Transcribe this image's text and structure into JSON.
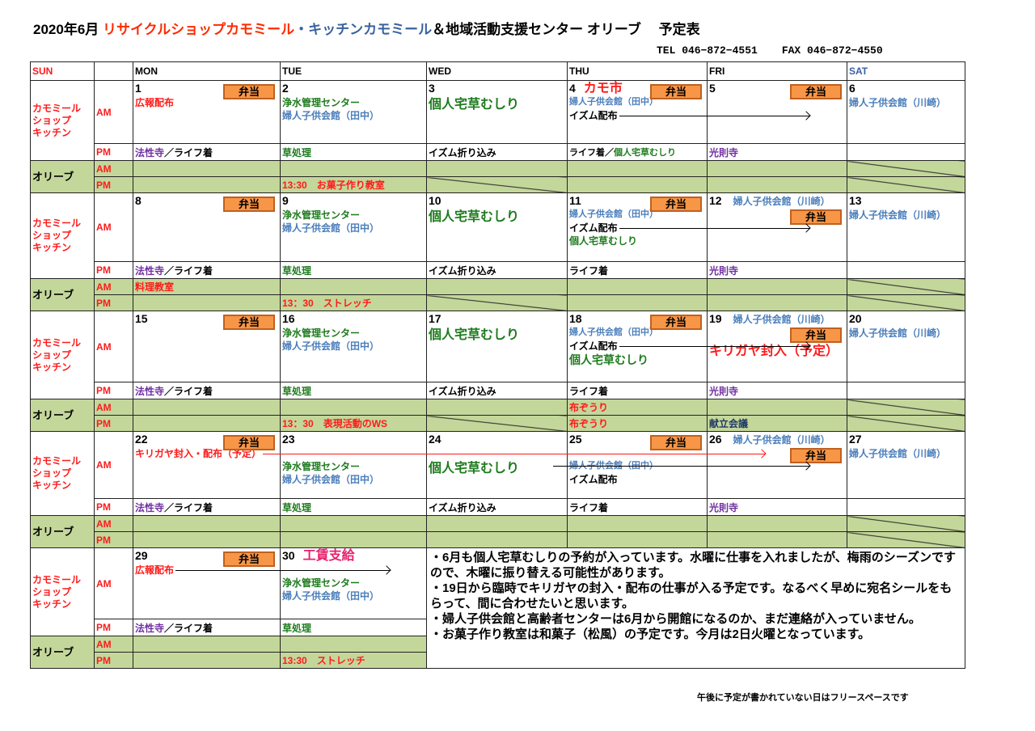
{
  "title": {
    "prefix": "2020年6月 ",
    "shop": "リサイクルショップカモミール",
    "sep": "・",
    "kitchen": "キッチンカモミール",
    "rest": "＆地域活動支援センター オリーブ　 予定表"
  },
  "contact": {
    "tel": "TEL 046−872−4551",
    "fax": "FAX 046−872−4550"
  },
  "colors": {
    "red": "#ff1a1a",
    "green": "#1e7b1e",
    "blue": "#4a7ebb",
    "purple": "#7030a0",
    "navy": "#1f3864",
    "magenta": "#e8206e",
    "olive_bg": "#c4d79b",
    "bento_bg": "#f79646"
  },
  "header": {
    "days": [
      "SUN",
      "",
      "MON",
      "TUE",
      "WED",
      "THU",
      "FRI",
      "SAT"
    ]
  },
  "labels": {
    "group_shop": [
      "カモミール",
      "ショップ",
      "キッチン"
    ],
    "group_olive": "オリーブ",
    "am": "AM",
    "pm": "PM",
    "bento": "弁当"
  },
  "weeks": [
    {
      "days": [
        {
          "date": "1",
          "bento": true,
          "am": [
            {
              "parts": [
                {
                  "text": "広報配布",
                  "color": "red"
                }
              ]
            }
          ],
          "pm": [
            {
              "text": "法性寺",
              "color": "purple"
            },
            {
              "text": "／ライフ着",
              "color": "black"
            }
          ],
          "olive_am": [],
          "olive_pm": []
        },
        {
          "date": "2",
          "am": [
            {
              "parts": [
                {
                  "text": "浄水管理センター",
                  "color": "green"
                }
              ]
            },
            {
              "parts": [
                {
                  "text": "婦人子供会館（田中）",
                  "color": "blue"
                }
              ]
            }
          ],
          "pm": [
            {
              "text": "草処理",
              "color": "green"
            }
          ],
          "olive_am": [],
          "olive_pm": [
            {
              "text": "13:30　お菓子作り教室",
              "color": "red"
            }
          ]
        },
        {
          "date": "3",
          "am": [
            {
              "size": "large",
              "parts": [
                {
                  "text": "個人宅草むしり",
                  "color": "green"
                }
              ]
            }
          ],
          "pm": [
            {
              "text": "イズム折り込み",
              "color": "black"
            }
          ],
          "olive_am": [],
          "olive_pm": [],
          "slash_pm": true
        },
        {
          "date": "4",
          "title": {
            "text": "カモ市",
            "color": "red",
            "size": "large"
          },
          "bento": true,
          "am": [
            {
              "size": "small",
              "parts": [
                {
                  "text": "婦人子供会館（田中）",
                  "color": "blue"
                }
              ]
            },
            {
              "parts": [
                {
                  "text": "イズム配布",
                  "color": "black"
                }
              ],
              "arrow_to": "FRI"
            }
          ],
          "pm": [
            {
              "text": "ライフ着／",
              "color": "black",
              "size": "small"
            },
            {
              "text": "個人宅草むしり",
              "color": "green",
              "size": "small"
            }
          ],
          "olive_am": [],
          "olive_pm": []
        },
        {
          "date": "5",
          "bento": true,
          "am": [],
          "pm": [
            {
              "text": "光則寺",
              "color": "purple"
            }
          ],
          "olive_am": [],
          "olive_pm": []
        },
        {
          "date": "6",
          "am": [
            {
              "parts": [
                {
                  "text": "婦人子供会館（川崎）",
                  "color": "blue"
                }
              ]
            }
          ],
          "pm": [],
          "olive_am": [],
          "olive_pm": [],
          "slash_am": true,
          "slash_pm": true
        }
      ]
    },
    {
      "days": [
        {
          "date": "8",
          "bento": true,
          "am": [],
          "pm": [
            {
              "text": "法性寺",
              "color": "purple"
            },
            {
              "text": "／ライフ着",
              "color": "black"
            }
          ],
          "olive_am": [
            {
              "text": "料理教室",
              "color": "red"
            }
          ],
          "olive_pm": []
        },
        {
          "date": "9",
          "am": [
            {
              "parts": [
                {
                  "text": "浄水管理センター",
                  "color": "green"
                }
              ]
            },
            {
              "parts": [
                {
                  "text": "婦人子供会館（田中）",
                  "color": "blue"
                }
              ]
            }
          ],
          "pm": [
            {
              "text": "草処理",
              "color": "green"
            }
          ],
          "olive_am": [],
          "olive_pm": [
            {
              "text": "13：30　ストレッチ",
              "color": "red"
            }
          ]
        },
        {
          "date": "10",
          "am": [
            {
              "size": "large",
              "parts": [
                {
                  "text": "個人宅草むしり",
                  "color": "green"
                }
              ]
            }
          ],
          "pm": [
            {
              "text": "イズム折り込み",
              "color": "black"
            }
          ],
          "olive_am": [],
          "olive_pm": [],
          "slash_pm": true
        },
        {
          "date": "11",
          "bento": true,
          "am": [
            {
              "size": "small",
              "parts": [
                {
                  "text": "婦人子供会館（田中）",
                  "color": "blue"
                }
              ]
            },
            {
              "parts": [
                {
                  "text": "イズム配布",
                  "color": "black"
                }
              ],
              "arrow_to": "FRI"
            },
            {
              "parts": [
                {
                  "text": "個人宅草むしり",
                  "color": "green"
                }
              ]
            }
          ],
          "pm": [
            {
              "text": "ライフ着",
              "color": "black"
            }
          ],
          "olive_am": [],
          "olive_pm": []
        },
        {
          "date": "12",
          "title": {
            "text": "婦人子供会館（川崎）",
            "color": "blue",
            "size": "small"
          },
          "bento": true,
          "am": [],
          "pm": [
            {
              "text": "光則寺",
              "color": "purple"
            }
          ],
          "olive_am": [],
          "olive_pm": []
        },
        {
          "date": "13",
          "am": [
            {
              "parts": [
                {
                  "text": "婦人子供会館（川崎）",
                  "color": "blue"
                }
              ]
            }
          ],
          "pm": [],
          "olive_am": [],
          "olive_pm": [],
          "slash_am": true,
          "slash_pm": true
        }
      ]
    },
    {
      "days": [
        {
          "date": "15",
          "bento": true,
          "am": [],
          "pm": [
            {
              "text": "法性寺",
              "color": "purple"
            },
            {
              "text": "／ライフ着",
              "color": "black"
            }
          ],
          "olive_am": [],
          "olive_pm": []
        },
        {
          "date": "16",
          "am": [
            {
              "parts": [
                {
                  "text": "浄水管理センター",
                  "color": "green"
                }
              ]
            },
            {
              "parts": [
                {
                  "text": "婦人子供会館（田中）",
                  "color": "blue"
                }
              ]
            }
          ],
          "pm": [
            {
              "text": "草処理",
              "color": "green"
            }
          ],
          "olive_am": [],
          "olive_pm": [
            {
              "text": "13：30　表現活動のWS",
              "color": "red"
            }
          ]
        },
        {
          "date": "17",
          "am": [
            {
              "size": "large",
              "parts": [
                {
                  "text": "個人宅草むしり",
                  "color": "green"
                }
              ]
            }
          ],
          "pm": [
            {
              "text": "イズム折り込み",
              "color": "black"
            }
          ],
          "olive_am": [],
          "olive_pm": [],
          "slash_pm": true
        },
        {
          "date": "18",
          "bento": true,
          "am": [
            {
              "size": "small",
              "parts": [
                {
                  "text": "婦人子供会館（田中）",
                  "color": "blue"
                }
              ]
            },
            {
              "parts": [
                {
                  "text": "イズム配布",
                  "color": "black"
                }
              ],
              "arrow_to": "FRI"
            },
            {
              "size": "medium",
              "parts": [
                {
                  "text": "個人宅草むしり",
                  "color": "green"
                }
              ]
            }
          ],
          "pm": [
            {
              "text": "ライフ着",
              "color": "black"
            }
          ],
          "olive_am": [
            {
              "text": "布ぞうり",
              "color": "red"
            }
          ],
          "olive_pm": [
            {
              "text": "布ぞうり",
              "color": "red"
            }
          ]
        },
        {
          "date": "19",
          "title": {
            "text": "婦人子供会館（川崎）",
            "color": "blue",
            "size": "small"
          },
          "bento": true,
          "am": [
            {
              "size": "large",
              "parts": [
                {
                  "text": "キリガヤ封入（予定）",
                  "color": "red"
                }
              ]
            }
          ],
          "pm": [
            {
              "text": "光則寺",
              "color": "purple"
            }
          ],
          "olive_am": [],
          "olive_pm": [
            {
              "text": "献立会議",
              "color": "navy"
            }
          ]
        },
        {
          "date": "20",
          "am": [
            {
              "parts": [
                {
                  "text": "婦人子供会館（川崎）",
                  "color": "blue"
                }
              ]
            }
          ],
          "pm": [],
          "olive_am": [],
          "olive_pm": [],
          "slash_am": true,
          "slash_pm": true
        }
      ]
    },
    {
      "days": [
        {
          "date": "22",
          "bento": true,
          "am": [
            {
              "parts": [
                {
                  "text": "キリガヤ封入・配布（予定）",
                  "color": "red"
                }
              ],
              "arrow_to": "FRI",
              "arrow_color": "red"
            }
          ],
          "pm": [
            {
              "text": "法性寺",
              "color": "purple"
            },
            {
              "text": "／ライフ着",
              "color": "black"
            }
          ],
          "olive_am": [],
          "olive_pm": []
        },
        {
          "date": "23",
          "am": [
            {
              "parts": []
            },
            {
              "parts": [
                {
                  "text": "浄水管理センター",
                  "color": "green"
                }
              ]
            },
            {
              "parts": [
                {
                  "text": "婦人子供会館（田中）",
                  "color": "blue"
                }
              ]
            }
          ],
          "pm": [
            {
              "text": "草処理",
              "color": "green"
            }
          ],
          "olive_am": [],
          "olive_pm": []
        },
        {
          "date": "24",
          "am": [
            {
              "parts": []
            },
            {
              "size": "large",
              "parts": [
                {
                  "text": "個人宅草むしり",
                  "color": "green"
                }
              ]
            }
          ],
          "pm": [
            {
              "text": "イズム折り込み",
              "color": "black"
            }
          ],
          "olive_am": [],
          "olive_pm": []
        },
        {
          "date": "25",
          "bento": true,
          "am": [
            {
              "parts": []
            },
            {
              "size": "small",
              "parts": [
                {
                  "text": "婦人子供会館（田中）",
                  "color": "blue"
                }
              ],
              "arrow_to": "FRI",
              "arrow_overlap": true
            },
            {
              "parts": [
                {
                  "text": "イズム配布",
                  "color": "black"
                }
              ]
            }
          ],
          "pm": [
            {
              "text": "ライフ着",
              "color": "black"
            }
          ],
          "olive_am": [],
          "olive_pm": []
        },
        {
          "date": "26",
          "title": {
            "text": "婦人子供会館（川崎）",
            "color": "blue",
            "size": "small"
          },
          "bento": true,
          "am": [],
          "pm": [
            {
              "text": "光則寺",
              "color": "purple"
            }
          ],
          "olive_am": [],
          "olive_pm": []
        },
        {
          "date": "27",
          "am": [
            {
              "parts": [
                {
                  "text": "婦人子供会館（川崎）",
                  "color": "blue"
                }
              ]
            }
          ],
          "pm": [],
          "olive_am": [],
          "olive_pm": [],
          "slash_am": true,
          "slash_pm": true
        }
      ]
    },
    {
      "days": [
        {
          "date": "29",
          "bento": true,
          "am": [
            {
              "parts": [
                {
                  "text": "広報配布",
                  "color": "red"
                }
              ],
              "arrow_to": "TUE"
            }
          ],
          "pm": [
            {
              "text": "法性寺",
              "color": "purple"
            },
            {
              "text": "／ライフ着",
              "color": "black"
            }
          ],
          "olive_am": [],
          "olive_pm": []
        },
        {
          "date": "30",
          "title": {
            "text": "工賃支給",
            "color": "magenta",
            "size": "large"
          },
          "am": [
            {
              "parts": []
            },
            {
              "parts": [
                {
                  "text": "浄水管理センター",
                  "color": "green"
                }
              ]
            },
            {
              "parts": [
                {
                  "text": "婦人子供会館（田中）",
                  "color": "blue"
                }
              ]
            }
          ],
          "pm": [
            {
              "text": "草処理",
              "color": "green"
            }
          ],
          "olive_am": [],
          "olive_pm": [
            {
              "text": "13:30　ストレッチ",
              "color": "red"
            }
          ]
        }
      ],
      "notes": [
        "・6月も個人宅草むしりの予約が入っています。水曜に仕事を入れましたが、梅雨のシーズンですので、木曜に振り替える可能性があります。",
        "・19日から臨時でキリガヤの封入・配布の仕事が入る予定です。なるべく早めに宛名シールをもらって、間に合わせたいと思います。",
        "・婦人子供会館と高齢者センターは6月から開館になるのか、まだ連絡が入っていません。",
        "・お菓子作り教室は和菓子（松風）の予定です。今月は2日火曜となっています。"
      ]
    }
  ],
  "footer": "午後に予定が書かれていない日はフリースペースです"
}
